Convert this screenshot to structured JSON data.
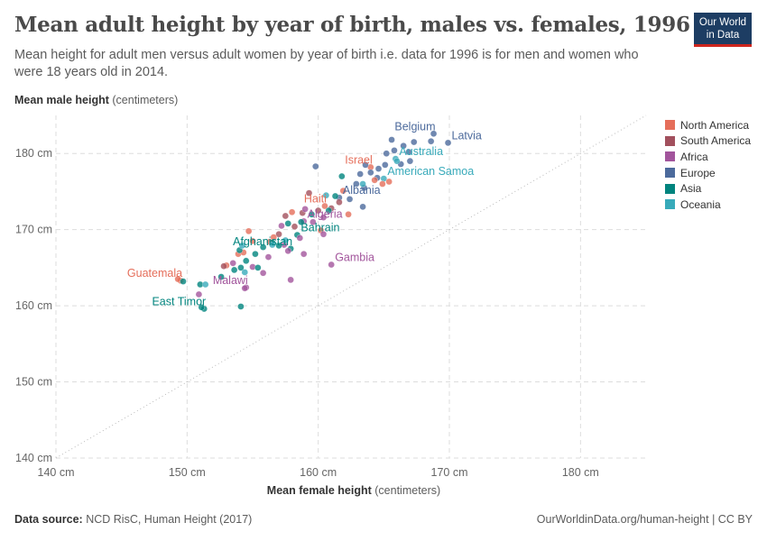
{
  "header": {
    "title": "Mean adult height by year of birth, males vs. females, 1996",
    "subtitle": "Mean height for adult men versus adult women by year of birth i.e. data for 1996 is for men and women who were 18 years old in 2014.",
    "logo": "Our World in Data"
  },
  "footer": {
    "source_label": "Data source:",
    "source": "NCD RisC, Human Height (2017)",
    "link": "OurWorldinData.org/human-height | CC BY"
  },
  "chart_data": {
    "type": "scatter",
    "title": "Mean adult height by year of birth, males vs. females, 1996",
    "xlabel_bold": "Mean female height",
    "xlabel_unit": "(centimeters)",
    "ylabel_bold": "Mean male height",
    "ylabel_unit": "(centimeters)",
    "xlim": [
      140,
      185
    ],
    "ylim": [
      140,
      185
    ],
    "xticks": [
      {
        "v": 140,
        "label": "140 cm"
      },
      {
        "v": 150,
        "label": "150 cm"
      },
      {
        "v": 160,
        "label": "160 cm"
      },
      {
        "v": 170,
        "label": "170 cm"
      },
      {
        "v": 180,
        "label": "180 cm"
      }
    ],
    "yticks": [
      {
        "v": 140,
        "label": "140 cm"
      },
      {
        "v": 150,
        "label": "150 cm"
      },
      {
        "v": 160,
        "label": "160 cm"
      },
      {
        "v": 170,
        "label": "170 cm"
      },
      {
        "v": 180,
        "label": "180 cm"
      }
    ],
    "grid": true,
    "diagonal_line": true,
    "legend_position": "right",
    "series": [
      {
        "name": "North America",
        "color": "#E56E5A"
      },
      {
        "name": "South America",
        "color": "#A2505D"
      },
      {
        "name": "Africa",
        "color": "#A2559C"
      },
      {
        "name": "Europe",
        "color": "#4C6A9C"
      },
      {
        "name": "Asia",
        "color": "#00847E"
      },
      {
        "name": "Oceania",
        "color": "#38AABA"
      }
    ],
    "points": [
      {
        "x": 169.9,
        "y": 181.4,
        "s": 3,
        "label": "Latvia"
      },
      {
        "x": 168.8,
        "y": 182.6,
        "s": 3,
        "label": "Belgium"
      },
      {
        "x": 165.9,
        "y": 179.3,
        "s": 5,
        "label": "Australia"
      },
      {
        "x": 165.0,
        "y": 176.7,
        "s": 5,
        "label": "American Samoa"
      },
      {
        "x": 164.0,
        "y": 178.2,
        "s": 0,
        "label": "Israel"
      },
      {
        "x": 161.6,
        "y": 174.2,
        "s": 3,
        "label": "Albania"
      },
      {
        "x": 160.5,
        "y": 173.1,
        "s": 0,
        "label": "Haiti"
      },
      {
        "x": 158.9,
        "y": 171.1,
        "s": 2,
        "label": "Algeria"
      },
      {
        "x": 158.4,
        "y": 169.3,
        "s": 4,
        "label": "Bahrain"
      },
      {
        "x": 157.9,
        "y": 167.5,
        "s": 4,
        "label": "Afghanistan"
      },
      {
        "x": 161.0,
        "y": 165.4,
        "s": 2,
        "label": "Gambia"
      },
      {
        "x": 154.5,
        "y": 162.4,
        "s": 2,
        "label": "Malawi"
      },
      {
        "x": 149.5,
        "y": 163.3,
        "s": 0,
        "label": "Guatemala"
      },
      {
        "x": 151.3,
        "y": 159.6,
        "s": 4,
        "label": "East Timor"
      },
      {
        "x": 165.6,
        "y": 181.8,
        "s": 3
      },
      {
        "x": 166.5,
        "y": 181.0,
        "s": 3
      },
      {
        "x": 167.3,
        "y": 181.5,
        "s": 3
      },
      {
        "x": 168.6,
        "y": 181.6,
        "s": 3
      },
      {
        "x": 165.2,
        "y": 180.0,
        "s": 3
      },
      {
        "x": 166.9,
        "y": 180.2,
        "s": 3
      },
      {
        "x": 165.8,
        "y": 180.4,
        "s": 3
      },
      {
        "x": 167.0,
        "y": 179.0,
        "s": 3
      },
      {
        "x": 166.3,
        "y": 178.6,
        "s": 3
      },
      {
        "x": 165.1,
        "y": 178.5,
        "s": 3
      },
      {
        "x": 164.6,
        "y": 178.0,
        "s": 3
      },
      {
        "x": 164.0,
        "y": 177.5,
        "s": 3
      },
      {
        "x": 163.2,
        "y": 177.3,
        "s": 3
      },
      {
        "x": 162.9,
        "y": 176.0,
        "s": 3
      },
      {
        "x": 163.5,
        "y": 175.5,
        "s": 3
      },
      {
        "x": 159.8,
        "y": 178.3,
        "s": 3
      },
      {
        "x": 163.4,
        "y": 173.0,
        "s": 3
      },
      {
        "x": 162.4,
        "y": 174.0,
        "s": 3
      },
      {
        "x": 164.5,
        "y": 176.8,
        "s": 3
      },
      {
        "x": 163.6,
        "y": 178.5,
        "s": 3
      },
      {
        "x": 164.3,
        "y": 176.5,
        "s": 0
      },
      {
        "x": 164.9,
        "y": 176.0,
        "s": 0
      },
      {
        "x": 165.4,
        "y": 176.3,
        "s": 0
      },
      {
        "x": 161.9,
        "y": 175.1,
        "s": 0
      },
      {
        "x": 162.3,
        "y": 172.0,
        "s": 0
      },
      {
        "x": 159.3,
        "y": 174.8,
        "s": 1
      },
      {
        "x": 161.0,
        "y": 172.8,
        "s": 1
      },
      {
        "x": 160.0,
        "y": 172.5,
        "s": 1
      },
      {
        "x": 158.8,
        "y": 172.2,
        "s": 1
      },
      {
        "x": 161.6,
        "y": 173.6,
        "s": 1
      },
      {
        "x": 157.5,
        "y": 171.8,
        "s": 1
      },
      {
        "x": 158.2,
        "y": 170.4,
        "s": 1
      },
      {
        "x": 157.0,
        "y": 169.4,
        "s": 1
      },
      {
        "x": 156.3,
        "y": 168.4,
        "s": 0
      },
      {
        "x": 155.0,
        "y": 168.5,
        "s": 0
      },
      {
        "x": 156.6,
        "y": 169.0,
        "s": 0
      },
      {
        "x": 154.7,
        "y": 169.8,
        "s": 0
      },
      {
        "x": 158.0,
        "y": 172.3,
        "s": 0
      },
      {
        "x": 160.2,
        "y": 169.9,
        "s": 0
      },
      {
        "x": 153.9,
        "y": 166.8,
        "s": 0
      },
      {
        "x": 154.3,
        "y": 167.0,
        "s": 0
      },
      {
        "x": 149.3,
        "y": 163.5,
        "s": 0
      },
      {
        "x": 153.0,
        "y": 165.3,
        "s": 0
      },
      {
        "x": 152.8,
        "y": 165.2,
        "s": 1
      },
      {
        "x": 160.4,
        "y": 171.6,
        "s": 2
      },
      {
        "x": 159.6,
        "y": 171.0,
        "s": 2
      },
      {
        "x": 160.4,
        "y": 169.4,
        "s": 2
      },
      {
        "x": 158.6,
        "y": 168.9,
        "s": 2
      },
      {
        "x": 157.7,
        "y": 167.2,
        "s": 2
      },
      {
        "x": 158.9,
        "y": 166.8,
        "s": 2
      },
      {
        "x": 157.4,
        "y": 168.0,
        "s": 2
      },
      {
        "x": 155.0,
        "y": 165.1,
        "s": 2
      },
      {
        "x": 155.8,
        "y": 164.3,
        "s": 2
      },
      {
        "x": 157.9,
        "y": 163.4,
        "s": 2
      },
      {
        "x": 154.4,
        "y": 162.3,
        "s": 2
      },
      {
        "x": 150.9,
        "y": 161.5,
        "s": 2
      },
      {
        "x": 153.5,
        "y": 165.6,
        "s": 2
      },
      {
        "x": 156.2,
        "y": 166.4,
        "s": 2
      },
      {
        "x": 159.0,
        "y": 172.7,
        "s": 2
      },
      {
        "x": 157.2,
        "y": 170.5,
        "s": 2
      },
      {
        "x": 161.8,
        "y": 177.0,
        "s": 4
      },
      {
        "x": 161.3,
        "y": 174.4,
        "s": 4
      },
      {
        "x": 160.8,
        "y": 172.5,
        "s": 4
      },
      {
        "x": 159.5,
        "y": 172.0,
        "s": 4
      },
      {
        "x": 158.7,
        "y": 171.0,
        "s": 4
      },
      {
        "x": 157.7,
        "y": 170.8,
        "s": 4
      },
      {
        "x": 156.5,
        "y": 168.3,
        "s": 4
      },
      {
        "x": 155.8,
        "y": 167.7,
        "s": 4
      },
      {
        "x": 157.0,
        "y": 167.9,
        "s": 4
      },
      {
        "x": 155.2,
        "y": 166.8,
        "s": 4
      },
      {
        "x": 154.0,
        "y": 167.3,
        "s": 4
      },
      {
        "x": 154.5,
        "y": 165.9,
        "s": 4
      },
      {
        "x": 153.6,
        "y": 164.7,
        "s": 4
      },
      {
        "x": 152.6,
        "y": 163.8,
        "s": 4
      },
      {
        "x": 154.1,
        "y": 165.0,
        "s": 4
      },
      {
        "x": 151.0,
        "y": 162.8,
        "s": 4
      },
      {
        "x": 149.7,
        "y": 163.2,
        "s": 4
      },
      {
        "x": 151.1,
        "y": 159.8,
        "s": 4
      },
      {
        "x": 154.1,
        "y": 159.9,
        "s": 4
      },
      {
        "x": 155.4,
        "y": 165.0,
        "s": 4
      },
      {
        "x": 156.5,
        "y": 168.0,
        "s": 5
      },
      {
        "x": 157.5,
        "y": 168.6,
        "s": 5
      },
      {
        "x": 154.2,
        "y": 167.9,
        "s": 5
      },
      {
        "x": 151.4,
        "y": 162.8,
        "s": 5
      },
      {
        "x": 154.4,
        "y": 164.4,
        "s": 5
      },
      {
        "x": 163.4,
        "y": 176.0,
        "s": 5
      },
      {
        "x": 166.0,
        "y": 179.0,
        "s": 5
      },
      {
        "x": 160.6,
        "y": 174.5,
        "s": 5
      }
    ]
  }
}
